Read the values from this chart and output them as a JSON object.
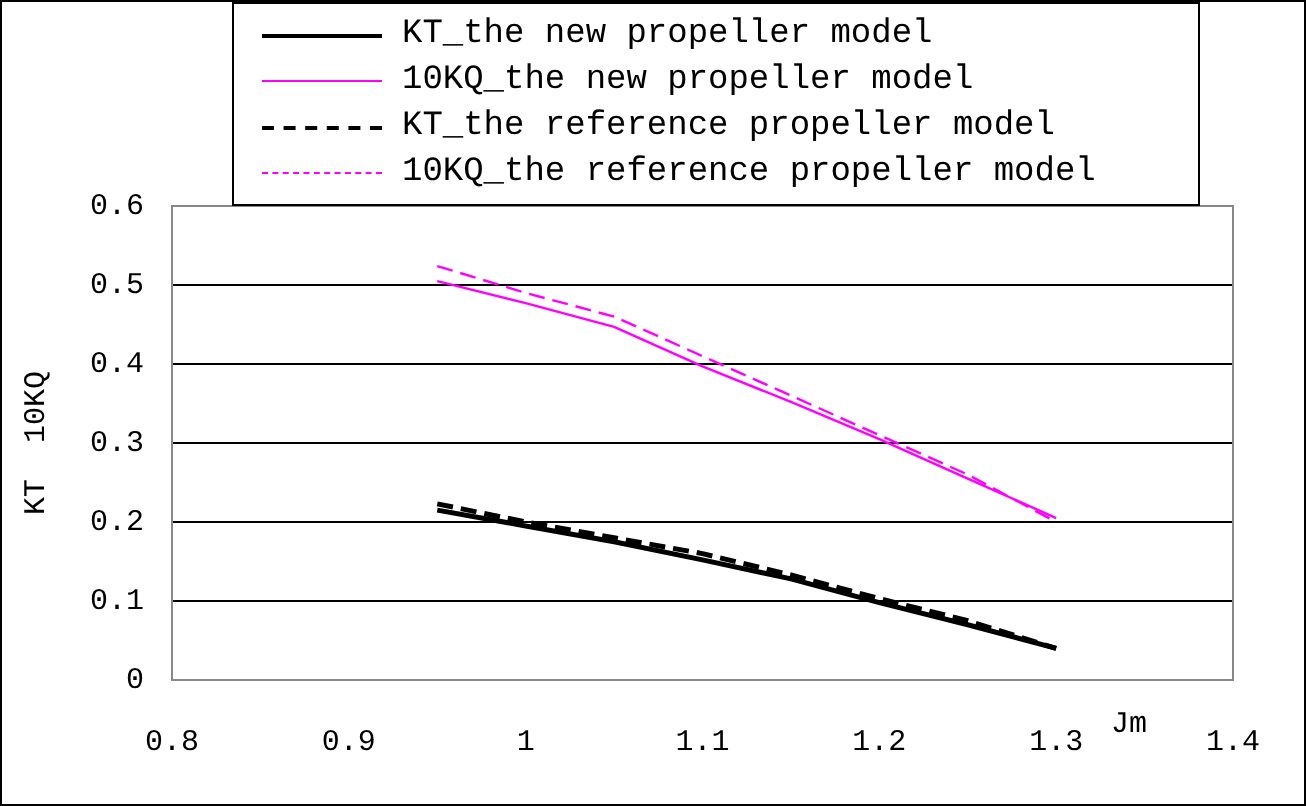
{
  "chart_data": {
    "type": "line",
    "xlabel": "Jm",
    "ylabel": "KT  10KQ",
    "x": [
      0.95,
      1.0,
      1.05,
      1.1,
      1.15,
      1.2,
      1.25,
      1.3
    ],
    "series": [
      {
        "name": "KT_the new propeller model",
        "color": "#000000",
        "line_style": "solid",
        "values": [
          0.215,
          0.195,
          0.175,
          0.152,
          0.128,
          0.098,
          0.07,
          0.04
        ]
      },
      {
        "name": "10KQ_the new propeller model",
        "color": "#ff00ff",
        "line_style": "solid",
        "values": [
          0.505,
          0.477,
          0.447,
          0.397,
          0.352,
          0.305,
          0.255,
          0.205
        ]
      },
      {
        "name": "KT_the reference propeller model",
        "color": "#000000",
        "line_style": "dashed",
        "values": [
          0.223,
          0.2,
          0.18,
          0.16,
          0.133,
          0.103,
          0.075,
          0.04
        ]
      },
      {
        "name": "10KQ_the reference propeller model",
        "color": "#ff00ff",
        "line_style": "dashed",
        "values": [
          0.524,
          0.49,
          0.46,
          0.41,
          0.36,
          0.31,
          0.26,
          0.2
        ]
      }
    ],
    "xlim": [
      0.8,
      1.4
    ],
    "xticks": [
      0.8,
      0.9,
      1,
      1.1,
      1.2,
      1.3,
      1.4
    ],
    "ylim": [
      0,
      0.6
    ],
    "yticks": [
      0,
      0.1,
      0.2,
      0.3,
      0.4,
      0.5,
      0.6
    ],
    "grid": "y",
    "legend": "top",
    "marker": "none"
  }
}
